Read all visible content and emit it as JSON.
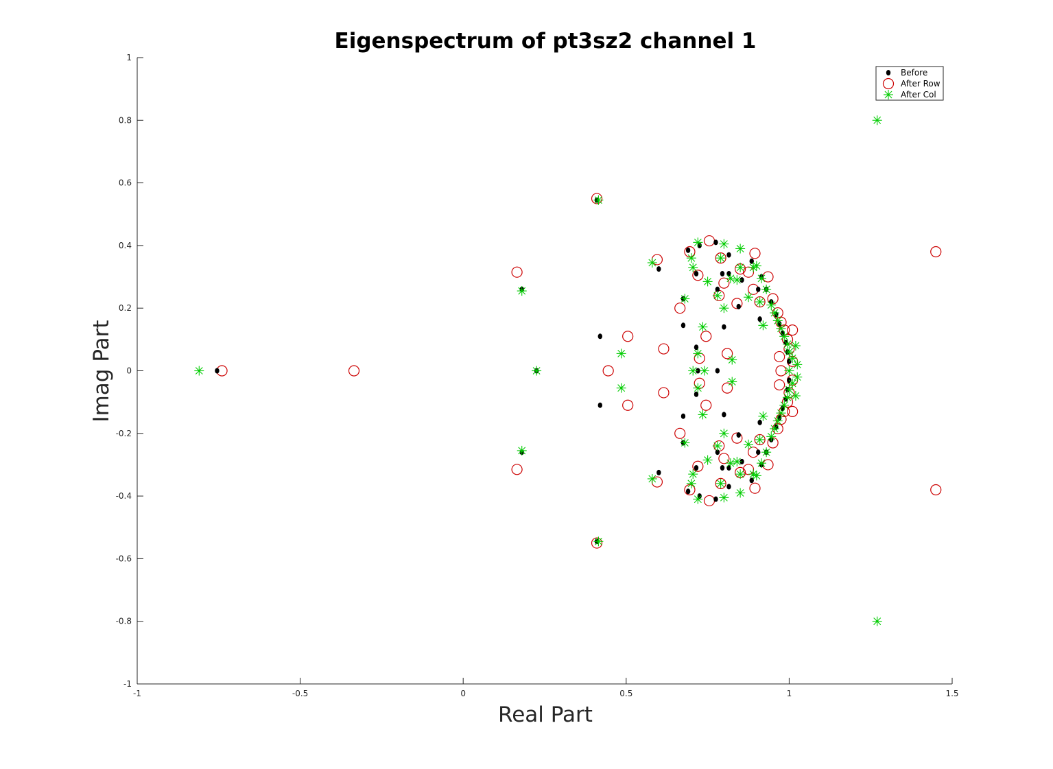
{
  "chart_data": {
    "type": "scatter",
    "title": "Eigenspectrum of pt3sz2 channel 1",
    "xlabel": "Real Part",
    "ylabel": "Imag Part",
    "xlim": [
      -1,
      1.5
    ],
    "ylim": [
      -1,
      1
    ],
    "xticks": [
      -1,
      -0.5,
      0,
      0.5,
      1,
      1.5
    ],
    "xtick_labels": [
      "-1",
      "-0.5",
      "0",
      "0.5",
      "1",
      "1.5"
    ],
    "yticks": [
      -1,
      -0.8,
      -0.6,
      -0.4,
      -0.2,
      0,
      0.2,
      0.4,
      0.6,
      0.8,
      1
    ],
    "ytick_labels": [
      "-1",
      "-0.8",
      "-0.6",
      "-0.4",
      "-0.2",
      "0",
      "0.2",
      "0.4",
      "0.6",
      "0.8",
      "1"
    ],
    "grid": false,
    "legend_position": "top-right",
    "series": [
      {
        "name": "Before",
        "marker": "dot",
        "color": "#000000",
        "symmetric_conjugate": true,
        "real_axis_points": [
          -0.755,
          0.225,
          0.72,
          0.78
        ],
        "upper_points": [
          [
            0.41,
            0.545
          ],
          [
            0.18,
            0.26
          ],
          [
            0.42,
            0.11
          ],
          [
            0.6,
            0.325
          ],
          [
            0.675,
            0.23
          ],
          [
            0.675,
            0.145
          ],
          [
            0.69,
            0.385
          ],
          [
            0.715,
            0.31
          ],
          [
            0.715,
            0.075
          ],
          [
            0.725,
            0.4
          ],
          [
            0.775,
            0.41
          ],
          [
            0.78,
            0.26
          ],
          [
            0.795,
            0.31
          ],
          [
            0.8,
            0.14
          ],
          [
            0.815,
            0.37
          ],
          [
            0.815,
            0.31
          ],
          [
            0.845,
            0.205
          ],
          [
            0.855,
            0.29
          ],
          [
            0.885,
            0.35
          ],
          [
            0.905,
            0.26
          ],
          [
            0.91,
            0.165
          ],
          [
            0.915,
            0.3
          ],
          [
            0.93,
            0.26
          ],
          [
            0.945,
            0.22
          ],
          [
            0.96,
            0.18
          ],
          [
            0.97,
            0.15
          ],
          [
            0.98,
            0.12
          ],
          [
            0.99,
            0.09
          ],
          [
            0.995,
            0.06
          ],
          [
            1.0,
            0.03
          ]
        ]
      },
      {
        "name": "After Row",
        "marker": "circle",
        "color": "#cc0000",
        "symmetric_conjugate": true,
        "real_axis_points": [
          -0.74,
          -0.335,
          0.445,
          0.975
        ],
        "upper_points": [
          [
            1.45,
            0.38
          ],
          [
            0.41,
            0.55
          ],
          [
            0.165,
            0.315
          ],
          [
            0.505,
            0.11
          ],
          [
            0.615,
            0.07
          ],
          [
            0.595,
            0.355
          ],
          [
            0.665,
            0.2
          ],
          [
            0.695,
            0.38
          ],
          [
            0.72,
            0.305
          ],
          [
            0.725,
            0.04
          ],
          [
            0.745,
            0.11
          ],
          [
            0.755,
            0.415
          ],
          [
            0.785,
            0.24
          ],
          [
            0.79,
            0.36
          ],
          [
            0.8,
            0.28
          ],
          [
            0.81,
            0.055
          ],
          [
            0.84,
            0.215
          ],
          [
            0.85,
            0.325
          ],
          [
            0.875,
            0.315
          ],
          [
            0.89,
            0.26
          ],
          [
            0.895,
            0.375
          ],
          [
            0.91,
            0.22
          ],
          [
            0.935,
            0.3
          ],
          [
            0.95,
            0.23
          ],
          [
            0.965,
            0.185
          ],
          [
            0.975,
            0.155
          ],
          [
            0.985,
            0.13
          ],
          [
            0.995,
            0.1
          ],
          [
            1.0,
            0.07
          ],
          [
            1.01,
            0.13
          ],
          [
            1.01,
            0.03
          ],
          [
            0.97,
            0.045
          ]
        ]
      },
      {
        "name": "After Col",
        "marker": "asterisk",
        "color": "#00cc00",
        "symmetric_conjugate": true,
        "real_axis_points": [
          -0.81,
          0.225,
          0.705,
          0.74,
          1.0
        ],
        "upper_points": [
          [
            1.27,
            0.8
          ],
          [
            0.415,
            0.545
          ],
          [
            0.18,
            0.255
          ],
          [
            0.485,
            0.055
          ],
          [
            0.58,
            0.345
          ],
          [
            0.68,
            0.23
          ],
          [
            0.7,
            0.36
          ],
          [
            0.705,
            0.33
          ],
          [
            0.72,
            0.41
          ],
          [
            0.72,
            0.055
          ],
          [
            0.735,
            0.14
          ],
          [
            0.75,
            0.285
          ],
          [
            0.78,
            0.24
          ],
          [
            0.79,
            0.36
          ],
          [
            0.8,
            0.2
          ],
          [
            0.8,
            0.405
          ],
          [
            0.82,
            0.295
          ],
          [
            0.825,
            0.035
          ],
          [
            0.84,
            0.29
          ],
          [
            0.85,
            0.33
          ],
          [
            0.85,
            0.39
          ],
          [
            0.875,
            0.235
          ],
          [
            0.89,
            0.33
          ],
          [
            0.9,
            0.335
          ],
          [
            0.91,
            0.22
          ],
          [
            0.915,
            0.295
          ],
          [
            0.92,
            0.145
          ],
          [
            0.93,
            0.26
          ],
          [
            0.945,
            0.21
          ],
          [
            0.955,
            0.185
          ],
          [
            0.965,
            0.16
          ],
          [
            0.975,
            0.135
          ],
          [
            0.985,
            0.11
          ],
          [
            0.995,
            0.085
          ],
          [
            1.0,
            0.06
          ],
          [
            1.01,
            0.04
          ],
          [
            1.02,
            0.08
          ],
          [
            1.025,
            0.02
          ]
        ]
      }
    ]
  }
}
